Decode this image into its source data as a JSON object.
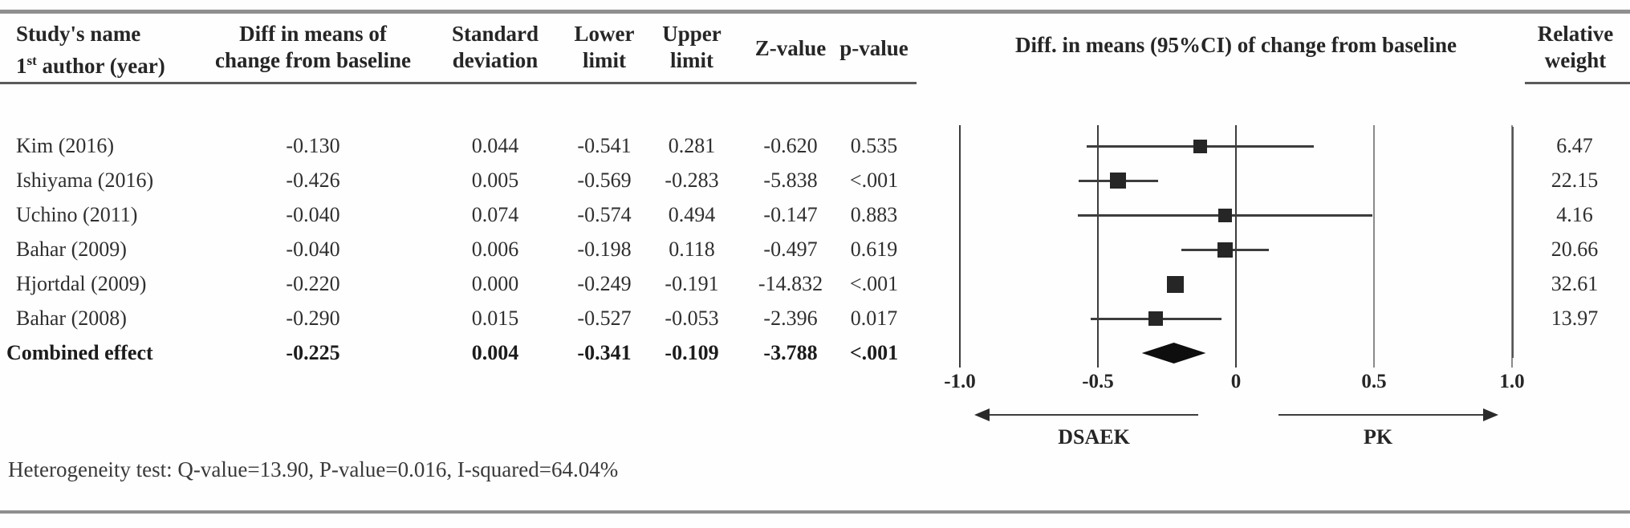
{
  "header": {
    "study_line1": "Study's name",
    "study_line2_num": "1",
    "study_line2_sup": "st",
    "study_line2_rest": " author (year)",
    "diff_line1": "Diff in means of",
    "diff_line2": "change from baseline",
    "sd_line1": "Standard",
    "sd_line2": "deviation",
    "lower_line1": "Lower",
    "lower_line2": "limit",
    "upper_line1": "Upper",
    "upper_line2": "limit",
    "z": "Z-value",
    "p": "p-value",
    "weight_line1": "Relative",
    "weight_line2": "weight"
  },
  "footer_text": "Heterogeneity test: Q-value=13.90, P-value=0.016, I-squared=64.04%",
  "chart_data": {
    "type": "forest",
    "title": "Diff. in means (95%CI) of change from baseline",
    "xlim": [
      -1.0,
      1.0
    ],
    "x_ticks": [
      "-1.0",
      "-0.5",
      "0",
      "0.5",
      "1.0"
    ],
    "left_arrow_label": "DSAEK",
    "right_arrow_label": "PK",
    "studies": [
      {
        "name": "Kim (2016)",
        "diff": "-0.130",
        "sd": "0.044",
        "lower": "-0.541",
        "upper": "0.281",
        "z": "-0.620",
        "p": "0.535",
        "weight": "6.47"
      },
      {
        "name": "Ishiyama (2016)",
        "diff": "-0.426",
        "sd": "0.005",
        "lower": "-0.569",
        "upper": "-0.283",
        "z": "-5.838",
        "p": "<.001",
        "weight": "22.15"
      },
      {
        "name": "Uchino (2011)",
        "diff": "-0.040",
        "sd": "0.074",
        "lower": "-0.574",
        "upper": "0.494",
        "z": "-0.147",
        "p": "0.883",
        "weight": "4.16"
      },
      {
        "name": "Bahar (2009)",
        "diff": "-0.040",
        "sd": "0.006",
        "lower": "-0.198",
        "upper": "0.118",
        "z": "-0.497",
        "p": "0.619",
        "weight": "20.66"
      },
      {
        "name": "Hjortdal (2009)",
        "diff": "-0.220",
        "sd": "0.000",
        "lower": "-0.249",
        "upper": "-0.191",
        "z": "-14.832",
        "p": "<.001",
        "weight": "32.61"
      },
      {
        "name": "Bahar (2008)",
        "diff": "-0.290",
        "sd": "0.015",
        "lower": "-0.527",
        "upper": "-0.053",
        "z": "-2.396",
        "p": "0.017",
        "weight": "13.97"
      }
    ],
    "combined": {
      "name": "Combined effect",
      "diff": "-0.225",
      "sd": "0.004",
      "lower": "-0.341",
      "upper": "-0.109",
      "z": "-3.788",
      "p": "<.001"
    },
    "heterogeneity": {
      "q_value": "13.90",
      "p_value": "0.016",
      "i_squared": "64.04%"
    }
  }
}
